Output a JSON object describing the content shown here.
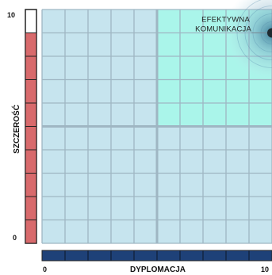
{
  "chart_data": {
    "type": "scatter",
    "xlabel": "DYPLOMACJA",
    "ylabel": "SZCZEROŚĆ",
    "xlim": [
      0,
      10
    ],
    "ylim": [
      0,
      10
    ],
    "x_tick_labels": [
      "0",
      "10"
    ],
    "y_tick_labels": [
      "0",
      "10"
    ],
    "grid": true,
    "highlighted_quadrant": "top-right",
    "points": [
      {
        "label": "EFEKTYWNA KOMUNIKACJA",
        "label_lines": [
          "EFEKTYWNA",
          "KOMUNIKACJA"
        ],
        "x": 10,
        "y": 9
      }
    ],
    "colors": {
      "grid_fill": "#c6e4ee",
      "highlight_fill": "#aaf5ea",
      "grid_line": "#9fb6c3",
      "frame": "#222222",
      "y_scale_fill": "#d86a6c",
      "x_scale_fill": "#1e4178",
      "point": "#1e2a30"
    }
  }
}
